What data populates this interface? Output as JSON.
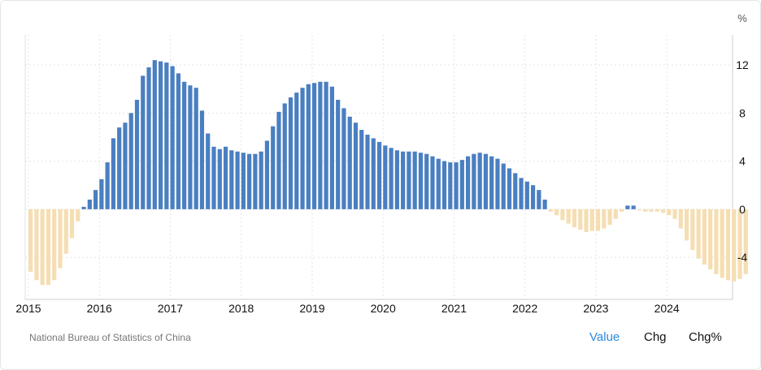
{
  "colors": {
    "positive": "#4a7fc1",
    "negative": "#f5deb3",
    "grid": "#e3e3e3",
    "active_tab": "#2b8ae0"
  },
  "source": "National Bureau of Statistics of China",
  "tabs": [
    {
      "label": "Value",
      "active": true
    },
    {
      "label": "Chg",
      "active": false
    },
    {
      "label": "Chg%",
      "active": false
    }
  ],
  "chart_data": {
    "type": "bar",
    "unit": "%",
    "ylim": [
      -7.5,
      14.5
    ],
    "yticks": [
      -4,
      0,
      4,
      8,
      12
    ],
    "xticks": [
      "2015",
      "2016",
      "2017",
      "2018",
      "2019",
      "2020",
      "2021",
      "2022",
      "2023",
      "2024"
    ],
    "grid": true,
    "start_month": "2015-01",
    "values": [
      -5.2,
      -5.9,
      -6.3,
      -6.3,
      -5.9,
      -4.9,
      -3.7,
      -2.4,
      -1.0,
      0.2,
      0.8,
      1.6,
      2.5,
      3.9,
      5.9,
      6.8,
      7.2,
      8.0,
      9.1,
      11.1,
      11.8,
      12.4,
      12.3,
      12.2,
      11.9,
      11.3,
      10.6,
      10.3,
      10.1,
      8.2,
      6.3,
      5.2,
      5.0,
      5.2,
      4.9,
      4.8,
      4.7,
      4.6,
      4.6,
      4.8,
      5.7,
      6.9,
      8.1,
      8.8,
      9.3,
      9.7,
      10.1,
      10.4,
      10.5,
      10.6,
      10.6,
      10.2,
      9.1,
      8.4,
      7.7,
      7.2,
      6.6,
      6.2,
      5.9,
      5.6,
      5.3,
      5.1,
      4.9,
      4.8,
      4.8,
      4.8,
      4.7,
      4.6,
      4.4,
      4.2,
      4.0,
      3.9,
      3.9,
      4.1,
      4.4,
      4.6,
      4.7,
      4.6,
      4.4,
      4.2,
      3.8,
      3.4,
      3.0,
      2.6,
      2.3,
      2.0,
      1.6,
      0.8,
      -0.2,
      -0.5,
      -0.9,
      -1.2,
      -1.5,
      -1.7,
      -1.9,
      -1.8,
      -1.8,
      -1.6,
      -1.3,
      -0.8,
      -0.2,
      0.3,
      0.3,
      -0.1,
      -0.2,
      -0.2,
      -0.2,
      -0.3,
      -0.5,
      -0.8,
      -1.6,
      -2.6,
      -3.4,
      -4.1,
      -4.6,
      -5.0,
      -5.4,
      -5.7,
      -5.9,
      -6.0,
      -5.8,
      -5.4
    ]
  }
}
